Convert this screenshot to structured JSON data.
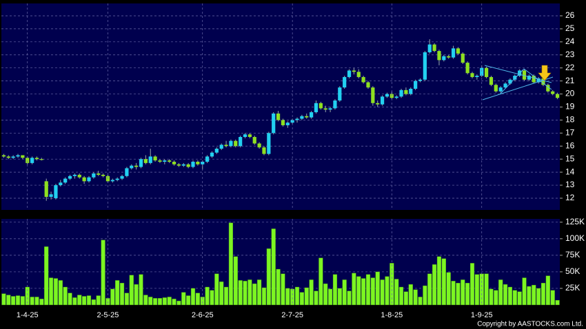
{
  "chart_data": [
    {
      "type": "candlestick",
      "up_color": "#22d0f0",
      "down_color": "#8ee020",
      "grid": true,
      "ylim": [
        11.1,
        26.95
      ],
      "yticks": [
        12,
        13,
        14,
        15,
        16,
        17,
        18,
        19,
        20,
        21,
        22,
        23,
        24,
        25,
        26
      ],
      "open": [
        15.3,
        15.2,
        15.1,
        15.2,
        15.3,
        15.1,
        14.7,
        15.1,
        15.0,
        13.3,
        12.1,
        12.0,
        13.0,
        13.2,
        13.5,
        13.7,
        13.8,
        13.6,
        13.3,
        13.6,
        13.9,
        13.8,
        13.7,
        13.3,
        13.4,
        13.5,
        13.7,
        14.3,
        14.5,
        14.4,
        15.0,
        14.7,
        15.2,
        14.9,
        14.8,
        14.9,
        14.8,
        14.6,
        14.5,
        14.6,
        14.4,
        14.8,
        14.6,
        14.8,
        15.2,
        15.5,
        15.8,
        16.1,
        16.0,
        16.4,
        16.0,
        16.7,
        16.9,
        16.7,
        16.2,
        15.9,
        15.4,
        17.0,
        18.5,
        18.0,
        17.6,
        17.8,
        18.0,
        18.1,
        18.3,
        18.2,
        18.6,
        19.3,
        18.9,
        18.8,
        18.9,
        19.5,
        20.5,
        21.3,
        21.8,
        21.7,
        21.3,
        20.9,
        20.5,
        19.3,
        19.2,
        19.8,
        20.0,
        19.7,
        19.8,
        20.3,
        20.0,
        20.4,
        21.0,
        21.1,
        23.2,
        23.8,
        23.3,
        22.6,
        22.9,
        22.8,
        23.5,
        23.1,
        22.4,
        21.6,
        21.3,
        21.4,
        22.0,
        21.3,
        20.7,
        20.2,
        20.5,
        20.8,
        21.1,
        21.4,
        21.8,
        21.1,
        21.4,
        20.9,
        21.2,
        20.7,
        20.2,
        20.0
      ],
      "high": [
        15.4,
        15.3,
        15.3,
        15.4,
        15.3,
        15.2,
        15.2,
        15.2,
        15.1,
        13.5,
        12.5,
        13.1,
        13.4,
        13.6,
        13.8,
        13.9,
        13.9,
        13.7,
        13.7,
        14.0,
        14.1,
        13.9,
        13.8,
        13.5,
        13.6,
        13.8,
        14.4,
        14.6,
        14.7,
        15.1,
        15.3,
        15.8,
        15.3,
        15.0,
        15.0,
        15.0,
        14.9,
        14.7,
        14.7,
        14.7,
        14.9,
        14.9,
        14.9,
        15.3,
        15.6,
        15.9,
        16.2,
        16.4,
        16.5,
        16.5,
        16.8,
        17.0,
        17.0,
        16.8,
        16.3,
        16.0,
        17.1,
        18.6,
        18.7,
        18.1,
        17.9,
        18.1,
        18.2,
        18.4,
        18.5,
        18.7,
        19.5,
        19.4,
        19.1,
        19.0,
        19.6,
        20.6,
        21.4,
        21.9,
        22.0,
        21.9,
        21.4,
        21.0,
        20.6,
        19.5,
        19.9,
        20.1,
        20.2,
        19.9,
        20.4,
        20.5,
        20.5,
        21.1,
        21.2,
        23.3,
        24.2,
        23.9,
        23.4,
        23.0,
        23.0,
        23.7,
        23.6,
        23.2,
        22.5,
        21.7,
        21.5,
        22.2,
        22.1,
        21.4,
        20.8,
        20.6,
        20.9,
        21.2,
        21.5,
        21.9,
        21.9,
        21.5,
        21.5,
        21.3,
        21.3,
        20.8,
        20.3,
        20.1
      ],
      "low": [
        15.1,
        15.0,
        15.0,
        15.1,
        15.0,
        14.6,
        14.6,
        14.9,
        14.9,
        11.8,
        11.9,
        11.9,
        12.9,
        13.1,
        13.4,
        13.5,
        13.5,
        13.1,
        13.2,
        13.5,
        13.7,
        13.6,
        13.2,
        13.2,
        13.3,
        13.4,
        13.6,
        14.2,
        14.2,
        14.3,
        14.6,
        14.6,
        14.8,
        14.7,
        14.6,
        14.7,
        14.5,
        14.4,
        14.4,
        14.3,
        14.3,
        14.5,
        14.2,
        14.7,
        15.1,
        15.4,
        15.7,
        15.9,
        15.9,
        15.9,
        15.9,
        16.6,
        16.6,
        16.1,
        15.8,
        15.3,
        15.3,
        16.9,
        17.9,
        17.5,
        17.4,
        17.7,
        17.8,
        18.0,
        18.1,
        18.1,
        18.5,
        18.8,
        18.6,
        18.6,
        18.8,
        19.4,
        20.4,
        21.2,
        21.5,
        21.2,
        20.8,
        20.4,
        19.1,
        19.0,
        19.1,
        19.7,
        19.6,
        19.6,
        19.7,
        19.9,
        19.9,
        20.3,
        20.9,
        21.0,
        23.1,
        23.2,
        22.2,
        22.5,
        22.7,
        22.7,
        23.0,
        22.3,
        21.5,
        21.2,
        21.1,
        21.3,
        21.2,
        20.6,
        20.1,
        20.1,
        20.4,
        20.7,
        21.0,
        21.3,
        21.0,
        21.0,
        20.8,
        20.8,
        20.6,
        20.1,
        19.9,
        19.6
      ],
      "close": [
        15.2,
        15.1,
        15.2,
        15.3,
        15.1,
        14.7,
        15.1,
        15.0,
        15.0,
        12.1,
        12.3,
        13.0,
        13.2,
        13.5,
        13.7,
        13.8,
        13.6,
        13.3,
        13.6,
        13.9,
        13.8,
        13.7,
        13.3,
        13.4,
        13.5,
        13.7,
        14.3,
        14.5,
        14.4,
        15.0,
        14.7,
        15.2,
        14.9,
        14.8,
        14.9,
        14.8,
        14.6,
        14.5,
        14.6,
        14.4,
        14.8,
        14.6,
        14.8,
        15.2,
        15.5,
        15.8,
        16.1,
        16.0,
        16.4,
        16.0,
        16.7,
        16.9,
        16.7,
        16.2,
        15.9,
        15.4,
        17.0,
        18.5,
        18.0,
        17.6,
        17.8,
        18.0,
        18.1,
        18.3,
        18.2,
        18.6,
        19.3,
        18.9,
        18.8,
        18.9,
        19.5,
        20.5,
        21.3,
        21.8,
        21.7,
        21.3,
        20.9,
        20.5,
        19.3,
        19.2,
        19.8,
        20.0,
        19.7,
        19.8,
        20.3,
        20.0,
        20.4,
        21.0,
        21.1,
        23.2,
        23.8,
        23.3,
        22.6,
        22.9,
        22.8,
        23.5,
        23.1,
        22.4,
        21.6,
        21.3,
        21.4,
        22.0,
        21.3,
        20.7,
        20.2,
        20.5,
        20.8,
        21.1,
        21.4,
        21.8,
        21.1,
        21.4,
        20.9,
        21.2,
        20.7,
        20.2,
        20.0,
        19.7
      ]
    },
    {
      "type": "bar",
      "color": "#7cf522",
      "grid": true,
      "ylim": [
        0,
        130000
      ],
      "yticks": [
        {
          "value": 25000,
          "label": "25K"
        },
        {
          "value": 50000,
          "label": "50K"
        },
        {
          "value": 75000,
          "label": "75K"
        },
        {
          "value": 100000,
          "label": "100K"
        },
        {
          "value": 125000,
          "label": "125K"
        }
      ],
      "categories": [
        null,
        null,
        null,
        null,
        null,
        "1-4-25",
        null,
        null,
        null,
        null,
        null,
        null,
        null,
        null,
        null,
        null,
        null,
        null,
        null,
        null,
        null,
        null,
        "2-5-25",
        null,
        null,
        null,
        null,
        null,
        null,
        null,
        null,
        null,
        null,
        null,
        null,
        null,
        null,
        null,
        null,
        null,
        null,
        null,
        "2-6-25",
        null,
        null,
        null,
        null,
        null,
        null,
        null,
        null,
        null,
        null,
        null,
        null,
        null,
        null,
        null,
        null,
        null,
        null,
        "2-7-25",
        null,
        null,
        null,
        null,
        null,
        null,
        null,
        null,
        null,
        null,
        null,
        null,
        null,
        null,
        null,
        null,
        null,
        null,
        null,
        null,
        "1-8-25",
        null,
        null,
        null,
        null,
        null,
        null,
        null,
        null,
        null,
        null,
        null,
        null,
        null,
        null,
        null,
        null,
        null,
        null,
        "1-9-25",
        null,
        null,
        null,
        null,
        null,
        null,
        null,
        null,
        null,
        null,
        null,
        null,
        null,
        null,
        null,
        null
      ],
      "values": [
        17000,
        15000,
        13000,
        14000,
        13000,
        27000,
        12000,
        12000,
        9000,
        88000,
        41000,
        40000,
        37000,
        27000,
        18000,
        11000,
        15000,
        13000,
        14000,
        8000,
        14000,
        98000,
        10000,
        24000,
        37000,
        33000,
        18000,
        45000,
        31000,
        46000,
        15000,
        12000,
        10000,
        10000,
        11000,
        12000,
        9000,
        6000,
        19000,
        14000,
        25000,
        18000,
        12000,
        27000,
        22000,
        47000,
        35000,
        27000,
        124000,
        73000,
        37000,
        36000,
        38000,
        32000,
        38000,
        26000,
        85000,
        115000,
        54000,
        47000,
        25000,
        24000,
        27000,
        19000,
        26000,
        38000,
        21000,
        71000,
        32000,
        24000,
        46000,
        25000,
        38000,
        21000,
        48000,
        43000,
        40000,
        46000,
        41000,
        50000,
        38000,
        43000,
        63000,
        39000,
        27000,
        20000,
        31000,
        23000,
        12000,
        29000,
        47000,
        61000,
        73000,
        70000,
        49000,
        36000,
        33000,
        38000,
        33000,
        63000,
        46000,
        47000,
        47000,
        24000,
        22000,
        38000,
        31000,
        27000,
        22000,
        20000,
        41000,
        28000,
        30000,
        25000,
        33000,
        44000,
        22000,
        7000
      ]
    }
  ],
  "footer": "Copyright by AASTOCKS.com Ltd."
}
